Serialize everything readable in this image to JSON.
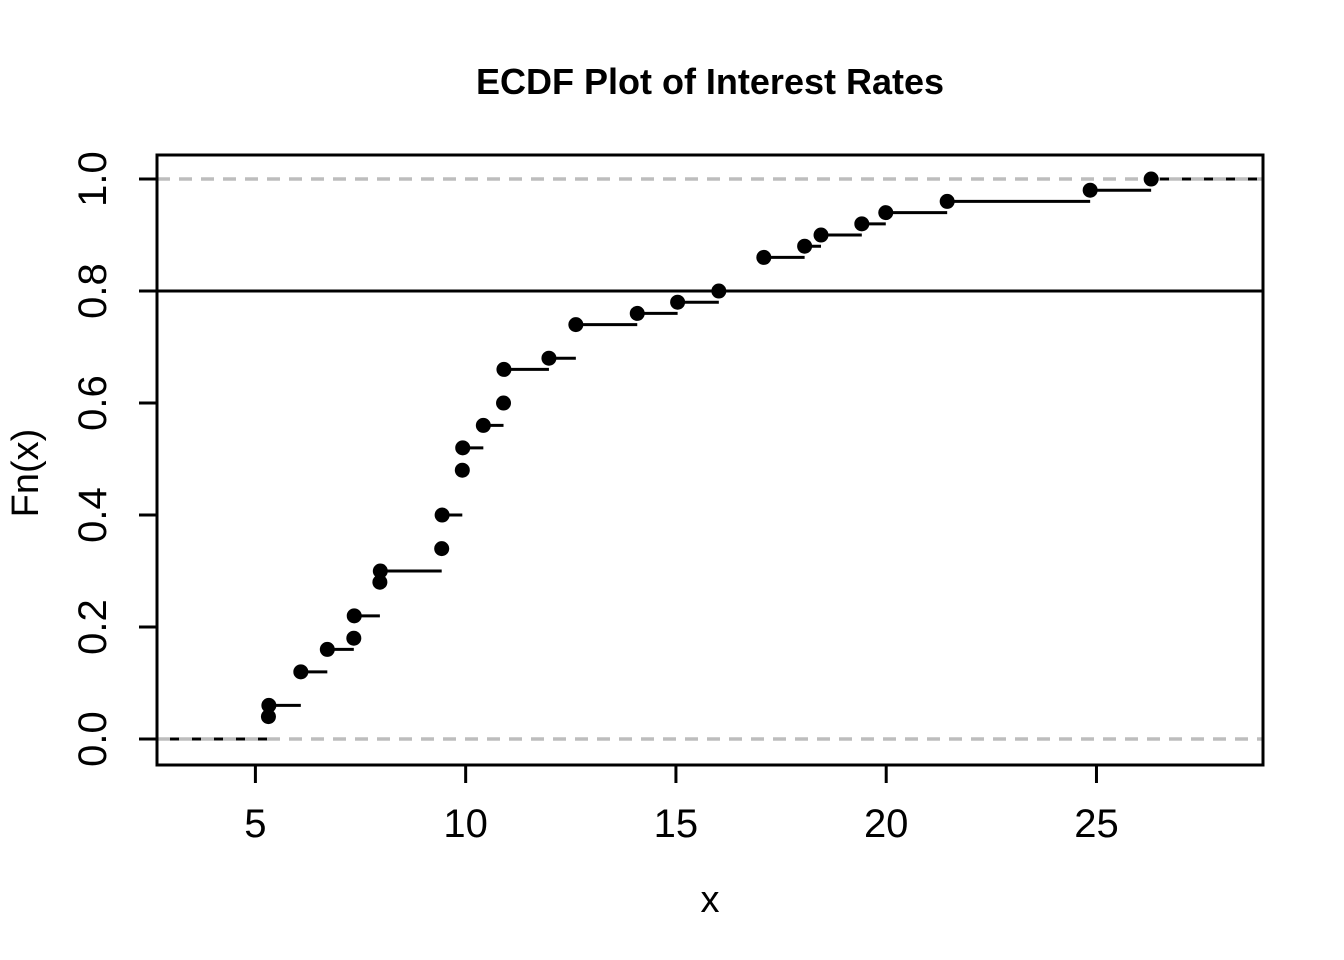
{
  "figure": {
    "background": "#ffffff"
  },
  "chart_data": {
    "type": "line",
    "variant": "ecdf-step",
    "title": "ECDF Plot of Interest Rates",
    "xlabel": "x",
    "ylabel": "Fn(x)",
    "xlim": [
      2.66,
      28.96
    ],
    "ylim": [
      -0.0464,
      1.0429
    ],
    "x_ticks": [
      5,
      10,
      15,
      20,
      25
    ],
    "x_tick_labels": [
      "5",
      "10",
      "15",
      "20",
      "25"
    ],
    "y_ticks": [
      0.0,
      0.2,
      0.4,
      0.6,
      0.8,
      1.0
    ],
    "y_tick_labels": [
      "0.0",
      "0.2",
      "0.4",
      "0.6",
      "0.8",
      "1.0"
    ],
    "grid": false,
    "legend": null,
    "marker": "filled-circle",
    "point_color": "#000000",
    "line_color": "#000000",
    "reference_lines": [
      {
        "y": 0.0,
        "style": "dashed",
        "color": "#bdbdbd"
      },
      {
        "y": 0.8,
        "style": "solid",
        "color": "#000000"
      },
      {
        "y": 1.0,
        "style": "dashed",
        "color": "#bdbdbd"
      }
    ],
    "points": [
      {
        "x": 5.31,
        "F": 0.04
      },
      {
        "x": 5.32,
        "F": 0.06
      },
      {
        "x": 6.08,
        "F": 0.12
      },
      {
        "x": 6.71,
        "F": 0.16
      },
      {
        "x": 7.34,
        "F": 0.18
      },
      {
        "x": 7.35,
        "F": 0.22
      },
      {
        "x": 7.96,
        "F": 0.28
      },
      {
        "x": 7.97,
        "F": 0.3
      },
      {
        "x": 9.43,
        "F": 0.34
      },
      {
        "x": 9.44,
        "F": 0.4
      },
      {
        "x": 9.92,
        "F": 0.48
      },
      {
        "x": 9.93,
        "F": 0.52
      },
      {
        "x": 10.42,
        "F": 0.56
      },
      {
        "x": 10.9,
        "F": 0.6
      },
      {
        "x": 10.91,
        "F": 0.66
      },
      {
        "x": 11.98,
        "F": 0.68
      },
      {
        "x": 12.62,
        "F": 0.74
      },
      {
        "x": 14.08,
        "F": 0.76
      },
      {
        "x": 15.04,
        "F": 0.78
      },
      {
        "x": 16.02,
        "F": 0.8
      },
      {
        "x": 17.09,
        "F": 0.86
      },
      {
        "x": 18.06,
        "F": 0.88
      },
      {
        "x": 18.45,
        "F": 0.9
      },
      {
        "x": 19.42,
        "F": 0.92
      },
      {
        "x": 19.99,
        "F": 0.94
      },
      {
        "x": 21.45,
        "F": 0.96
      },
      {
        "x": 24.85,
        "F": 0.98
      },
      {
        "x": 26.3,
        "F": 1.0
      }
    ]
  }
}
